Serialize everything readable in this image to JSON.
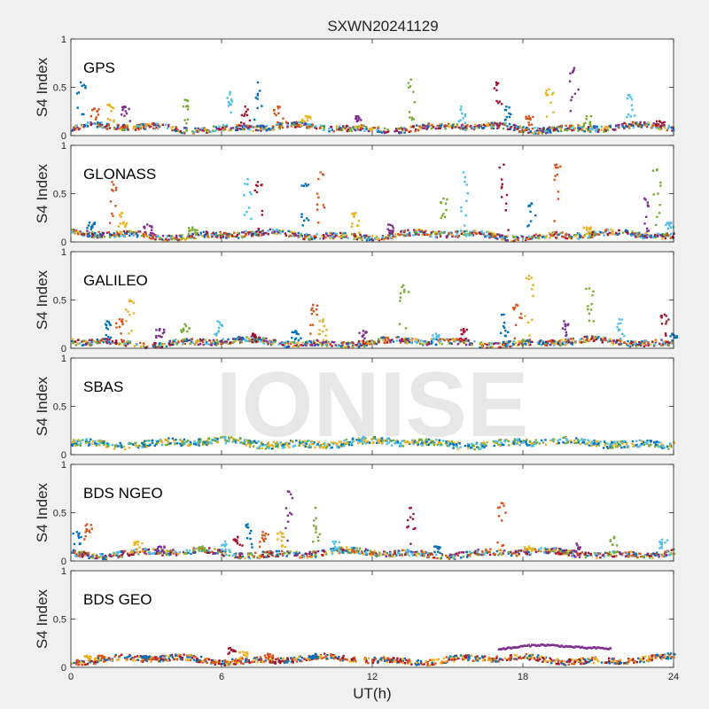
{
  "title": "SXWN20241129",
  "watermark": "IONISE",
  "xlabel": "UT(h)",
  "xticks": [
    "0",
    "6",
    "12",
    "18",
    "24"
  ],
  "yticks": [
    "0",
    "0.5",
    "1"
  ],
  "chart_data": {
    "type": "scatter",
    "title": "SXWN20241129",
    "xlabel": "UT(h)",
    "ylabel": "S4 Index",
    "xlim": [
      0,
      24
    ],
    "ylim": [
      0,
      1
    ],
    "grid": false,
    "legend": "none",
    "panels": [
      {
        "name": "GPS",
        "ylabel": "S4 Index",
        "baseline": 0.08,
        "spikes": [
          [
            0.35,
            0.55
          ],
          [
            0.9,
            0.28
          ],
          [
            1.5,
            0.32
          ],
          [
            2.1,
            0.3
          ],
          [
            4.5,
            0.37
          ],
          [
            6.3,
            0.45
          ],
          [
            6.9,
            0.3
          ],
          [
            7.4,
            0.55
          ],
          [
            8.2,
            0.3
          ],
          [
            9.3,
            0.2
          ],
          [
            11.4,
            0.2
          ],
          [
            13.5,
            0.58
          ],
          [
            15.5,
            0.3
          ],
          [
            16.9,
            0.55
          ],
          [
            17.3,
            0.3
          ],
          [
            18.2,
            0.2
          ],
          [
            19.0,
            0.48
          ],
          [
            20.0,
            0.7
          ],
          [
            20.5,
            0.2
          ],
          [
            22.2,
            0.42
          ],
          [
            23.4,
            0.15
          ]
        ],
        "colors": [
          "#0072BD",
          "#D95319",
          "#EDB120",
          "#7E2F8E",
          "#77AC30",
          "#4DBEEE",
          "#A2142F"
        ]
      },
      {
        "name": "GLONASS",
        "ylabel": "S4 Index",
        "baseline": 0.07,
        "spikes": [
          [
            0.7,
            0.2
          ],
          [
            1.6,
            0.62
          ],
          [
            2.0,
            0.3
          ],
          [
            3.0,
            0.18
          ],
          [
            4.8,
            0.15
          ],
          [
            7.0,
            0.65
          ],
          [
            7.4,
            0.62
          ],
          [
            9.3,
            0.6
          ],
          [
            9.9,
            0.72
          ],
          [
            11.3,
            0.3
          ],
          [
            12.6,
            0.18
          ],
          [
            14.8,
            0.45
          ],
          [
            15.6,
            0.72
          ],
          [
            17.2,
            0.8
          ],
          [
            18.3,
            0.4
          ],
          [
            19.3,
            0.8
          ],
          [
            20.5,
            0.15
          ],
          [
            22.8,
            0.45
          ],
          [
            23.3,
            0.75
          ],
          [
            23.8,
            0.2
          ]
        ],
        "colors": [
          "#0072BD",
          "#D95319",
          "#EDB120",
          "#7E2F8E",
          "#77AC30",
          "#4DBEEE",
          "#A2142F"
        ]
      },
      {
        "name": "GALILEO",
        "ylabel": "S4 Index",
        "baseline": 0.06,
        "spikes": [
          [
            1.4,
            0.28
          ],
          [
            1.9,
            0.3
          ],
          [
            2.3,
            0.5
          ],
          [
            3.5,
            0.2
          ],
          [
            4.5,
            0.25
          ],
          [
            5.8,
            0.28
          ],
          [
            7.2,
            0.15
          ],
          [
            8.9,
            0.18
          ],
          [
            9.6,
            0.45
          ],
          [
            10.0,
            0.3
          ],
          [
            11.6,
            0.18
          ],
          [
            13.2,
            0.65
          ],
          [
            14.5,
            0.15
          ],
          [
            15.6,
            0.2
          ],
          [
            17.2,
            0.35
          ],
          [
            17.7,
            0.45
          ],
          [
            18.2,
            0.75
          ],
          [
            19.6,
            0.28
          ],
          [
            20.6,
            0.62
          ],
          [
            21.8,
            0.3
          ],
          [
            23.6,
            0.35
          ],
          [
            23.9,
            0.15
          ]
        ],
        "colors": [
          "#0072BD",
          "#D95319",
          "#EDB120",
          "#7E2F8E",
          "#77AC30",
          "#4DBEEE",
          "#A2142F"
        ]
      },
      {
        "name": "SBAS",
        "ylabel": "S4 Index",
        "baseline": 0.12,
        "spikes": [],
        "colors": [
          "#4DBEEE",
          "#0072BD",
          "#77AC30",
          "#EDB120"
        ]
      },
      {
        "name": "BDS NGEO",
        "ylabel": "S4 Index",
        "baseline": 0.08,
        "spikes": [
          [
            0.2,
            0.3
          ],
          [
            0.6,
            0.38
          ],
          [
            2.6,
            0.2
          ],
          [
            3.5,
            0.15
          ],
          [
            5.2,
            0.15
          ],
          [
            6.1,
            0.2
          ],
          [
            6.6,
            0.25
          ],
          [
            7.0,
            0.38
          ],
          [
            7.6,
            0.3
          ],
          [
            8.3,
            0.3
          ],
          [
            8.6,
            0.72
          ],
          [
            9.7,
            0.55
          ],
          [
            10.5,
            0.2
          ],
          [
            13.5,
            0.55
          ],
          [
            14.5,
            0.15
          ],
          [
            17.1,
            0.6
          ],
          [
            18.2,
            0.15
          ],
          [
            20.1,
            0.18
          ],
          [
            21.6,
            0.25
          ],
          [
            23.5,
            0.22
          ]
        ],
        "colors": [
          "#0072BD",
          "#D95319",
          "#EDB120",
          "#7E2F8E",
          "#77AC30",
          "#4DBEEE",
          "#A2142F"
        ]
      },
      {
        "name": "BDS GEO",
        "ylabel": "S4 Index",
        "baseline": 0.08,
        "spikes": [
          [
            0.6,
            0.12
          ],
          [
            1.2,
            0.12
          ],
          [
            2.9,
            0.11
          ],
          [
            6.3,
            0.2
          ],
          [
            6.8,
            0.16
          ],
          [
            7.8,
            0.14
          ],
          [
            9.6,
            0.12
          ]
        ],
        "extra_series": [
          {
            "x": [
              17.0,
              17.5,
              18.0,
              18.5,
              19.0,
              19.5,
              20.0,
              20.5,
              21.0,
              21.5
            ],
            "y": [
              0.19,
              0.2,
              0.22,
              0.23,
              0.23,
              0.22,
              0.21,
              0.2,
              0.2,
              0.19
            ],
            "color": "#7E2F8E"
          }
        ],
        "colors": [
          "#EDB120",
          "#D95319",
          "#0072BD",
          "#A2142F"
        ]
      }
    ]
  }
}
